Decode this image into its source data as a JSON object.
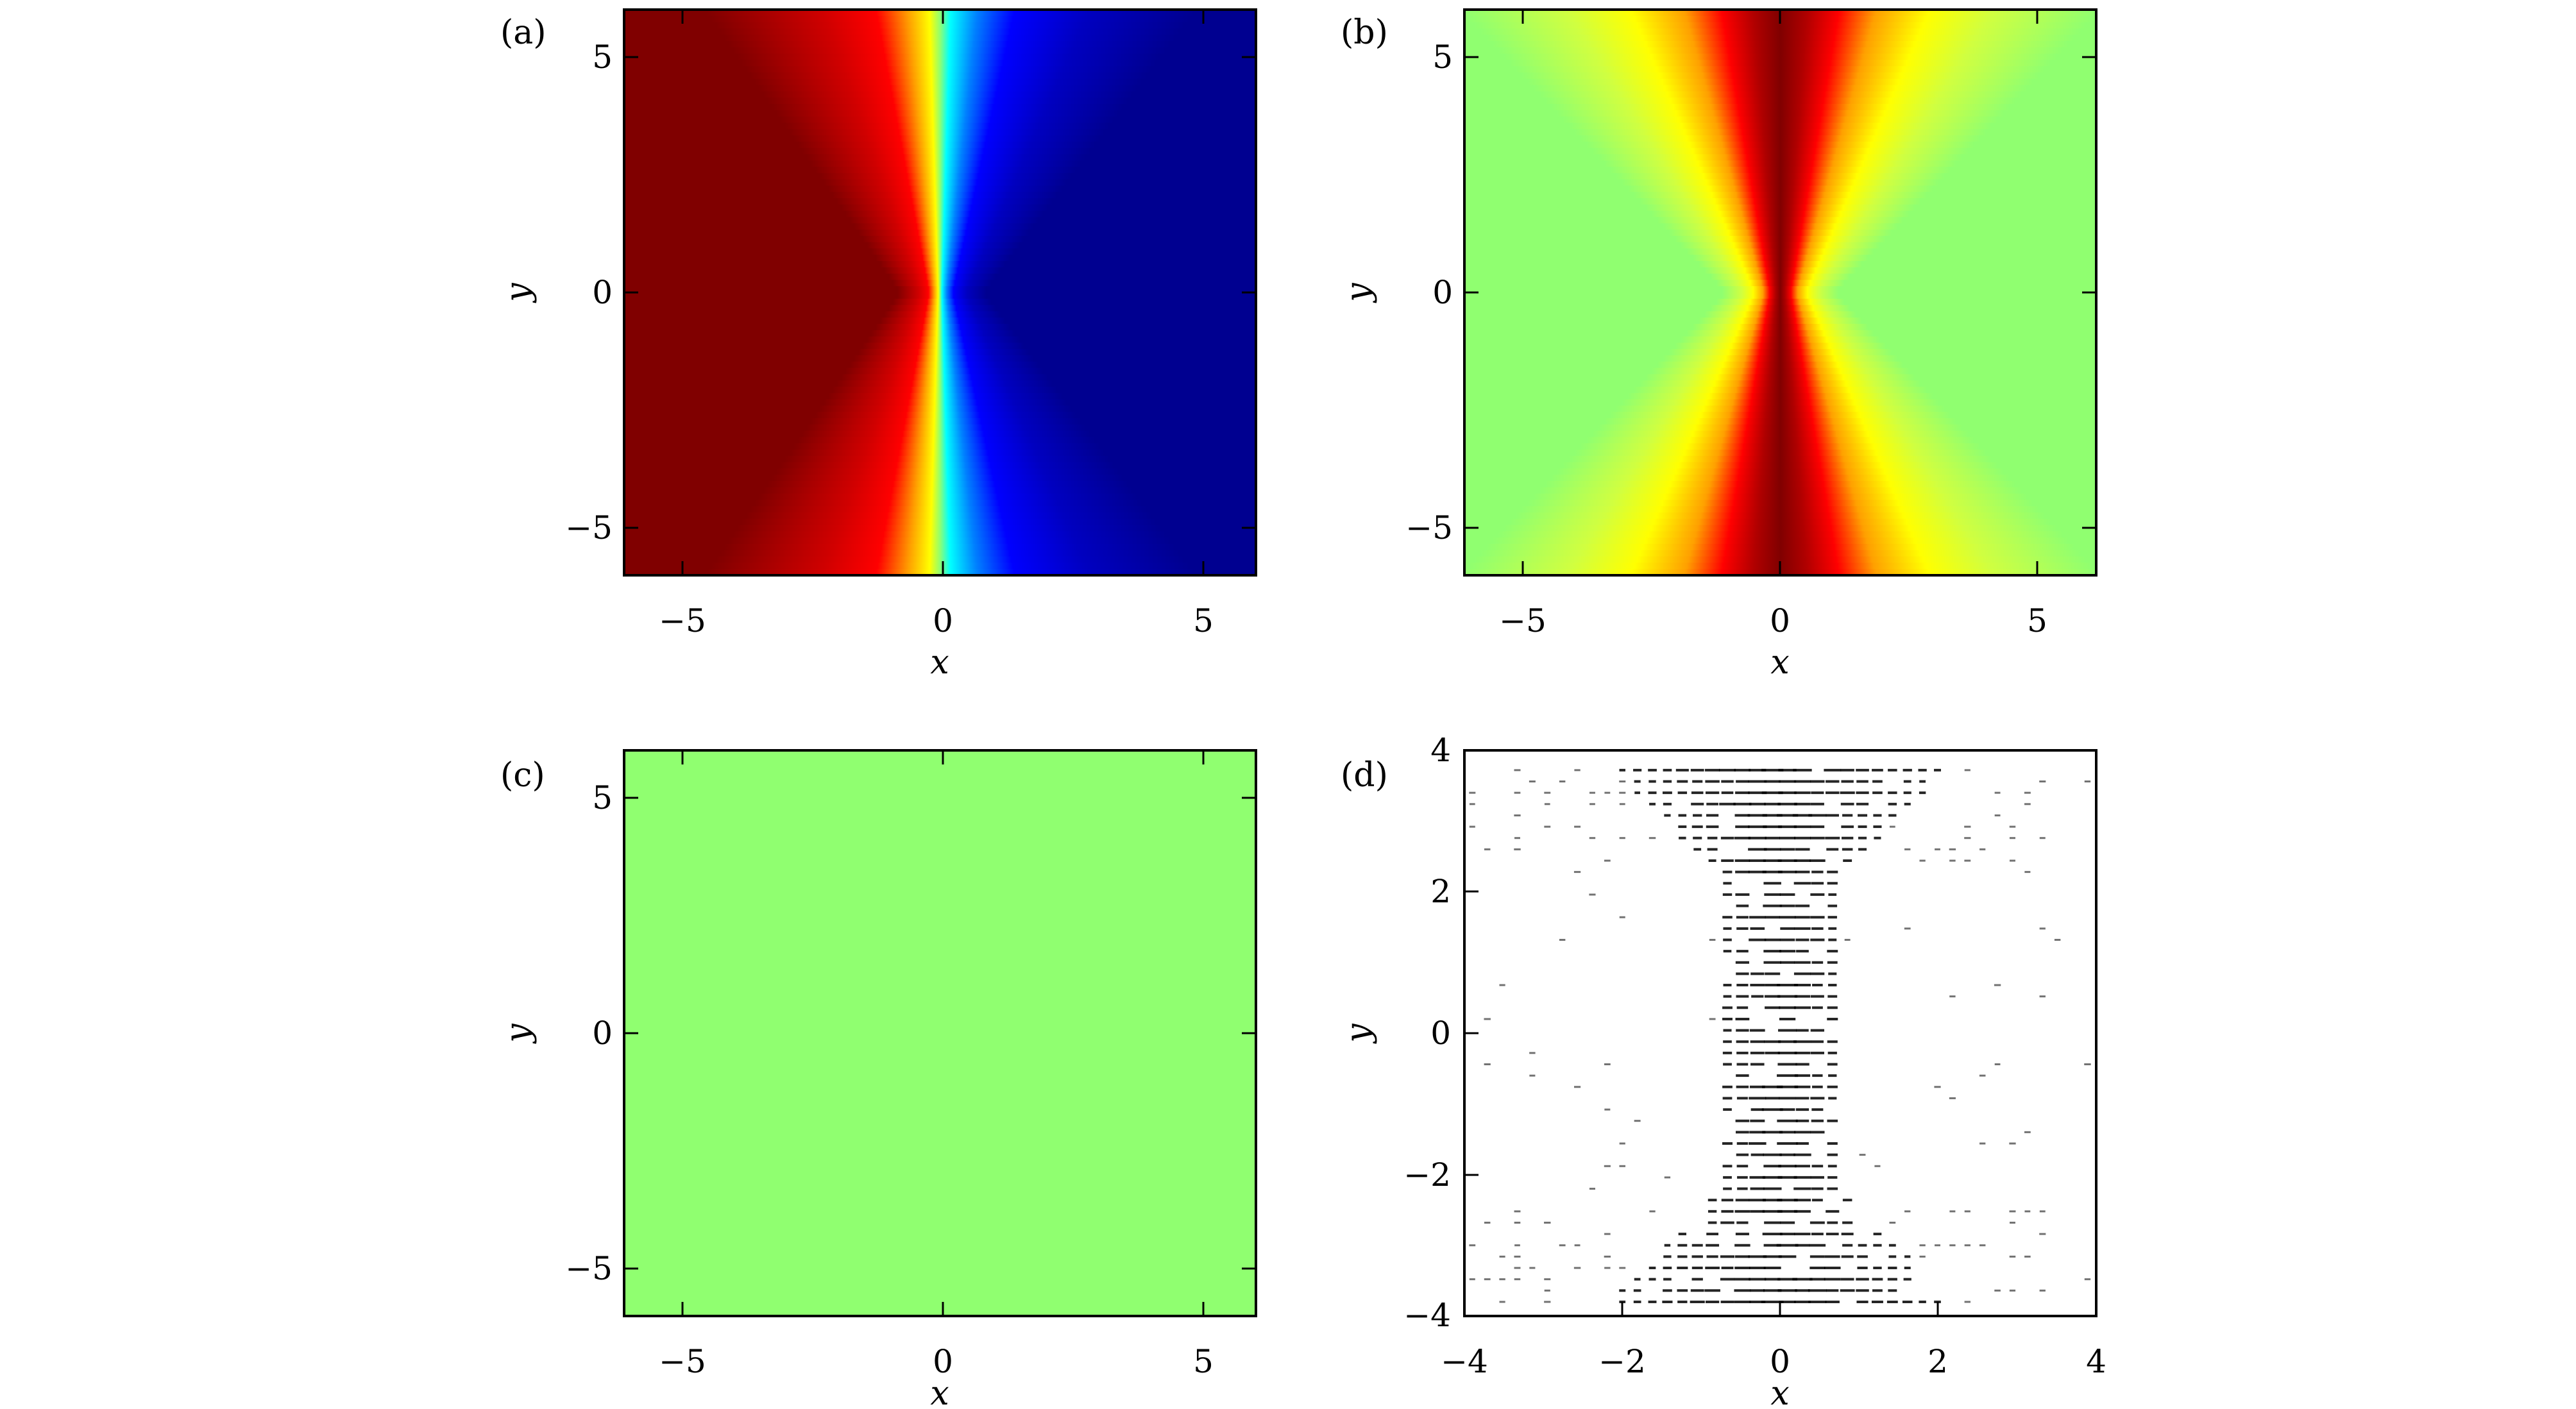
{
  "chart_data": [
    {
      "panel": "(a)",
      "type": "heatmap",
      "colormap": "jet",
      "xlabel": "x",
      "ylabel": "y",
      "xlim": [
        -6,
        6
      ],
      "ylim": [
        -6,
        6
      ],
      "xticks": [
        -5,
        0,
        5
      ],
      "yticks": [
        -5,
        0,
        5
      ],
      "xtick_labels": [
        "−5",
        "0",
        "5"
      ],
      "ytick_labels": [
        "−5",
        "0",
        "5"
      ],
      "description_values": {
        "left_region": "max",
        "right_region": "min",
        "transition_center_x": 0
      }
    },
    {
      "panel": "(b)",
      "type": "heatmap",
      "colormap": "jet",
      "xlabel": "x",
      "ylabel": "y",
      "xlim": [
        -6,
        6
      ],
      "ylim": [
        -6,
        6
      ],
      "xticks": [
        -5,
        0,
        5
      ],
      "yticks": [
        -5,
        0,
        5
      ],
      "xtick_labels": [
        "−5",
        "0",
        "5"
      ],
      "ytick_labels": [
        "−5",
        "0",
        "5"
      ],
      "description_values": {
        "background": "mid",
        "peak_center_x": 0
      }
    },
    {
      "panel": "(c)",
      "type": "heatmap",
      "colormap": "jet",
      "xlabel": "x",
      "ylabel": "y",
      "xlim": [
        -6,
        6
      ],
      "ylim": [
        -6,
        6
      ],
      "xticks": [
        -5,
        0,
        5
      ],
      "yticks": [
        -5,
        0,
        5
      ],
      "xtick_labels": [
        "−5",
        "0",
        "5"
      ],
      "ytick_labels": [
        "−5",
        "0",
        "5"
      ],
      "description_values": {
        "uniform": "mid"
      }
    },
    {
      "panel": "(d)",
      "type": "scatter",
      "xlabel": "x",
      "ylabel": "y",
      "xlim": [
        -4,
        4
      ],
      "ylim": [
        -4,
        4
      ],
      "xticks": [
        -4,
        -2,
        0,
        2,
        4
      ],
      "yticks": [
        -4,
        -2,
        0,
        2,
        4
      ],
      "xtick_labels": [
        "−4",
        "−2",
        "0",
        "2",
        "4"
      ],
      "ytick_labels": [
        "−4",
        "−2",
        "0",
        "2",
        "4"
      ]
    }
  ],
  "colors": {
    "jet_dark_red": "#800000",
    "jet_red": "#ff0000",
    "jet_yellow": "#ffff00",
    "jet_green": "#90ff70",
    "jet_cyan": "#00ffff",
    "jet_blue": "#0000ff",
    "jet_dark_blue": "#000090"
  }
}
